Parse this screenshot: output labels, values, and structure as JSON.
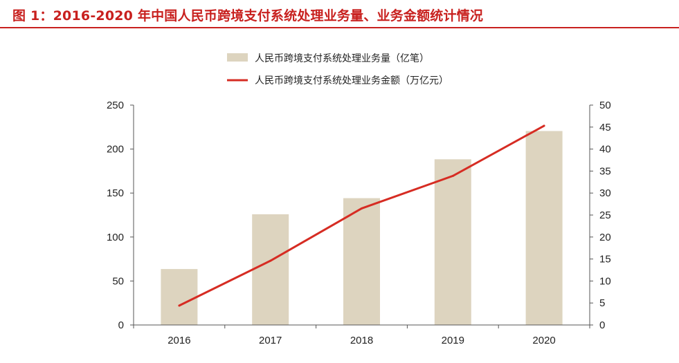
{
  "figure": {
    "title": "图 1：2016-2020 年中国人民币跨境支付系统处理业务量、业务金额统计情况"
  },
  "chart_data": {
    "type": "bar",
    "categories": [
      "2016",
      "2017",
      "2018",
      "2019",
      "2020"
    ],
    "series": [
      {
        "name": "人民币跨境支付系统处理业务量（亿笔）",
        "type": "bar",
        "axis": "left",
        "values": [
          63.6,
          125.9,
          144.2,
          188.4,
          220.5
        ],
        "color": "#ddd4bf"
      },
      {
        "name": "人民币跨境支付系统处理业务金额（万亿元）",
        "type": "line",
        "axis": "right",
        "values": [
          4.4,
          14.6,
          26.5,
          33.9,
          45.3
        ],
        "color": "#d62c23"
      }
    ],
    "y_left": {
      "range": [
        0,
        250
      ],
      "ticks": [
        "0",
        "50",
        "100",
        "150",
        "200",
        "250"
      ]
    },
    "y_right": {
      "range": [
        0,
        50
      ],
      "ticks": [
        "0",
        "5",
        "10",
        "15",
        "20",
        "25",
        "30",
        "35",
        "40",
        "45",
        "50"
      ]
    },
    "legend_position": "top-center",
    "grid": false
  }
}
